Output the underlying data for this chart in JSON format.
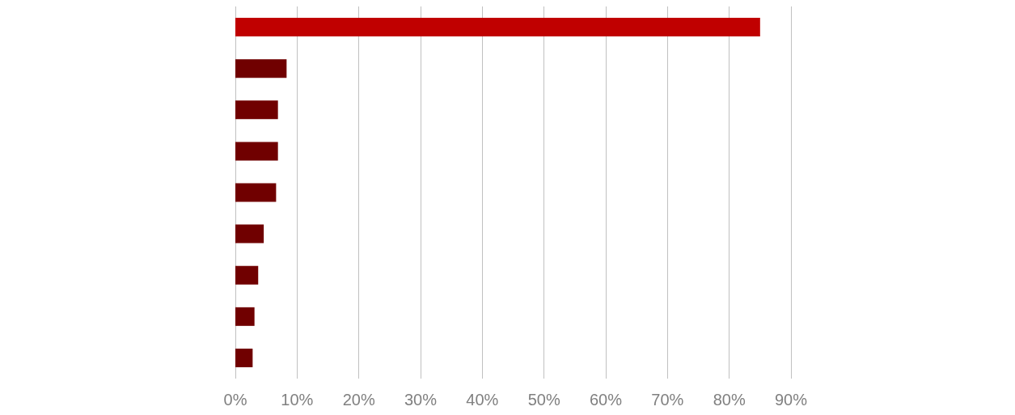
{
  "chart_data": {
    "type": "bar",
    "orientation": "horizontal",
    "categories": [
      null,
      null,
      null,
      null,
      null,
      null,
      null,
      null,
      null
    ],
    "values": [
      85,
      8.3,
      6.9,
      6.9,
      6.6,
      4.6,
      3.7,
      3.1,
      2.8
    ],
    "colors": [
      "#c00000",
      "#700000",
      "#700000",
      "#700000",
      "#700000",
      "#700000",
      "#700000",
      "#700000",
      "#700000"
    ],
    "xlim": [
      0,
      90
    ],
    "xticks": [
      {
        "value": 0,
        "label": "0%"
      },
      {
        "value": 10,
        "label": "10%"
      },
      {
        "value": 20,
        "label": "20%"
      },
      {
        "value": 30,
        "label": "30%"
      },
      {
        "value": 40,
        "label": "40%"
      },
      {
        "value": 50,
        "label": "50%"
      },
      {
        "value": 60,
        "label": "60%"
      },
      {
        "value": 70,
        "label": "70%"
      },
      {
        "value": 80,
        "label": "80%"
      },
      {
        "value": 90,
        "label": "90%"
      }
    ],
    "grid": "x"
  }
}
